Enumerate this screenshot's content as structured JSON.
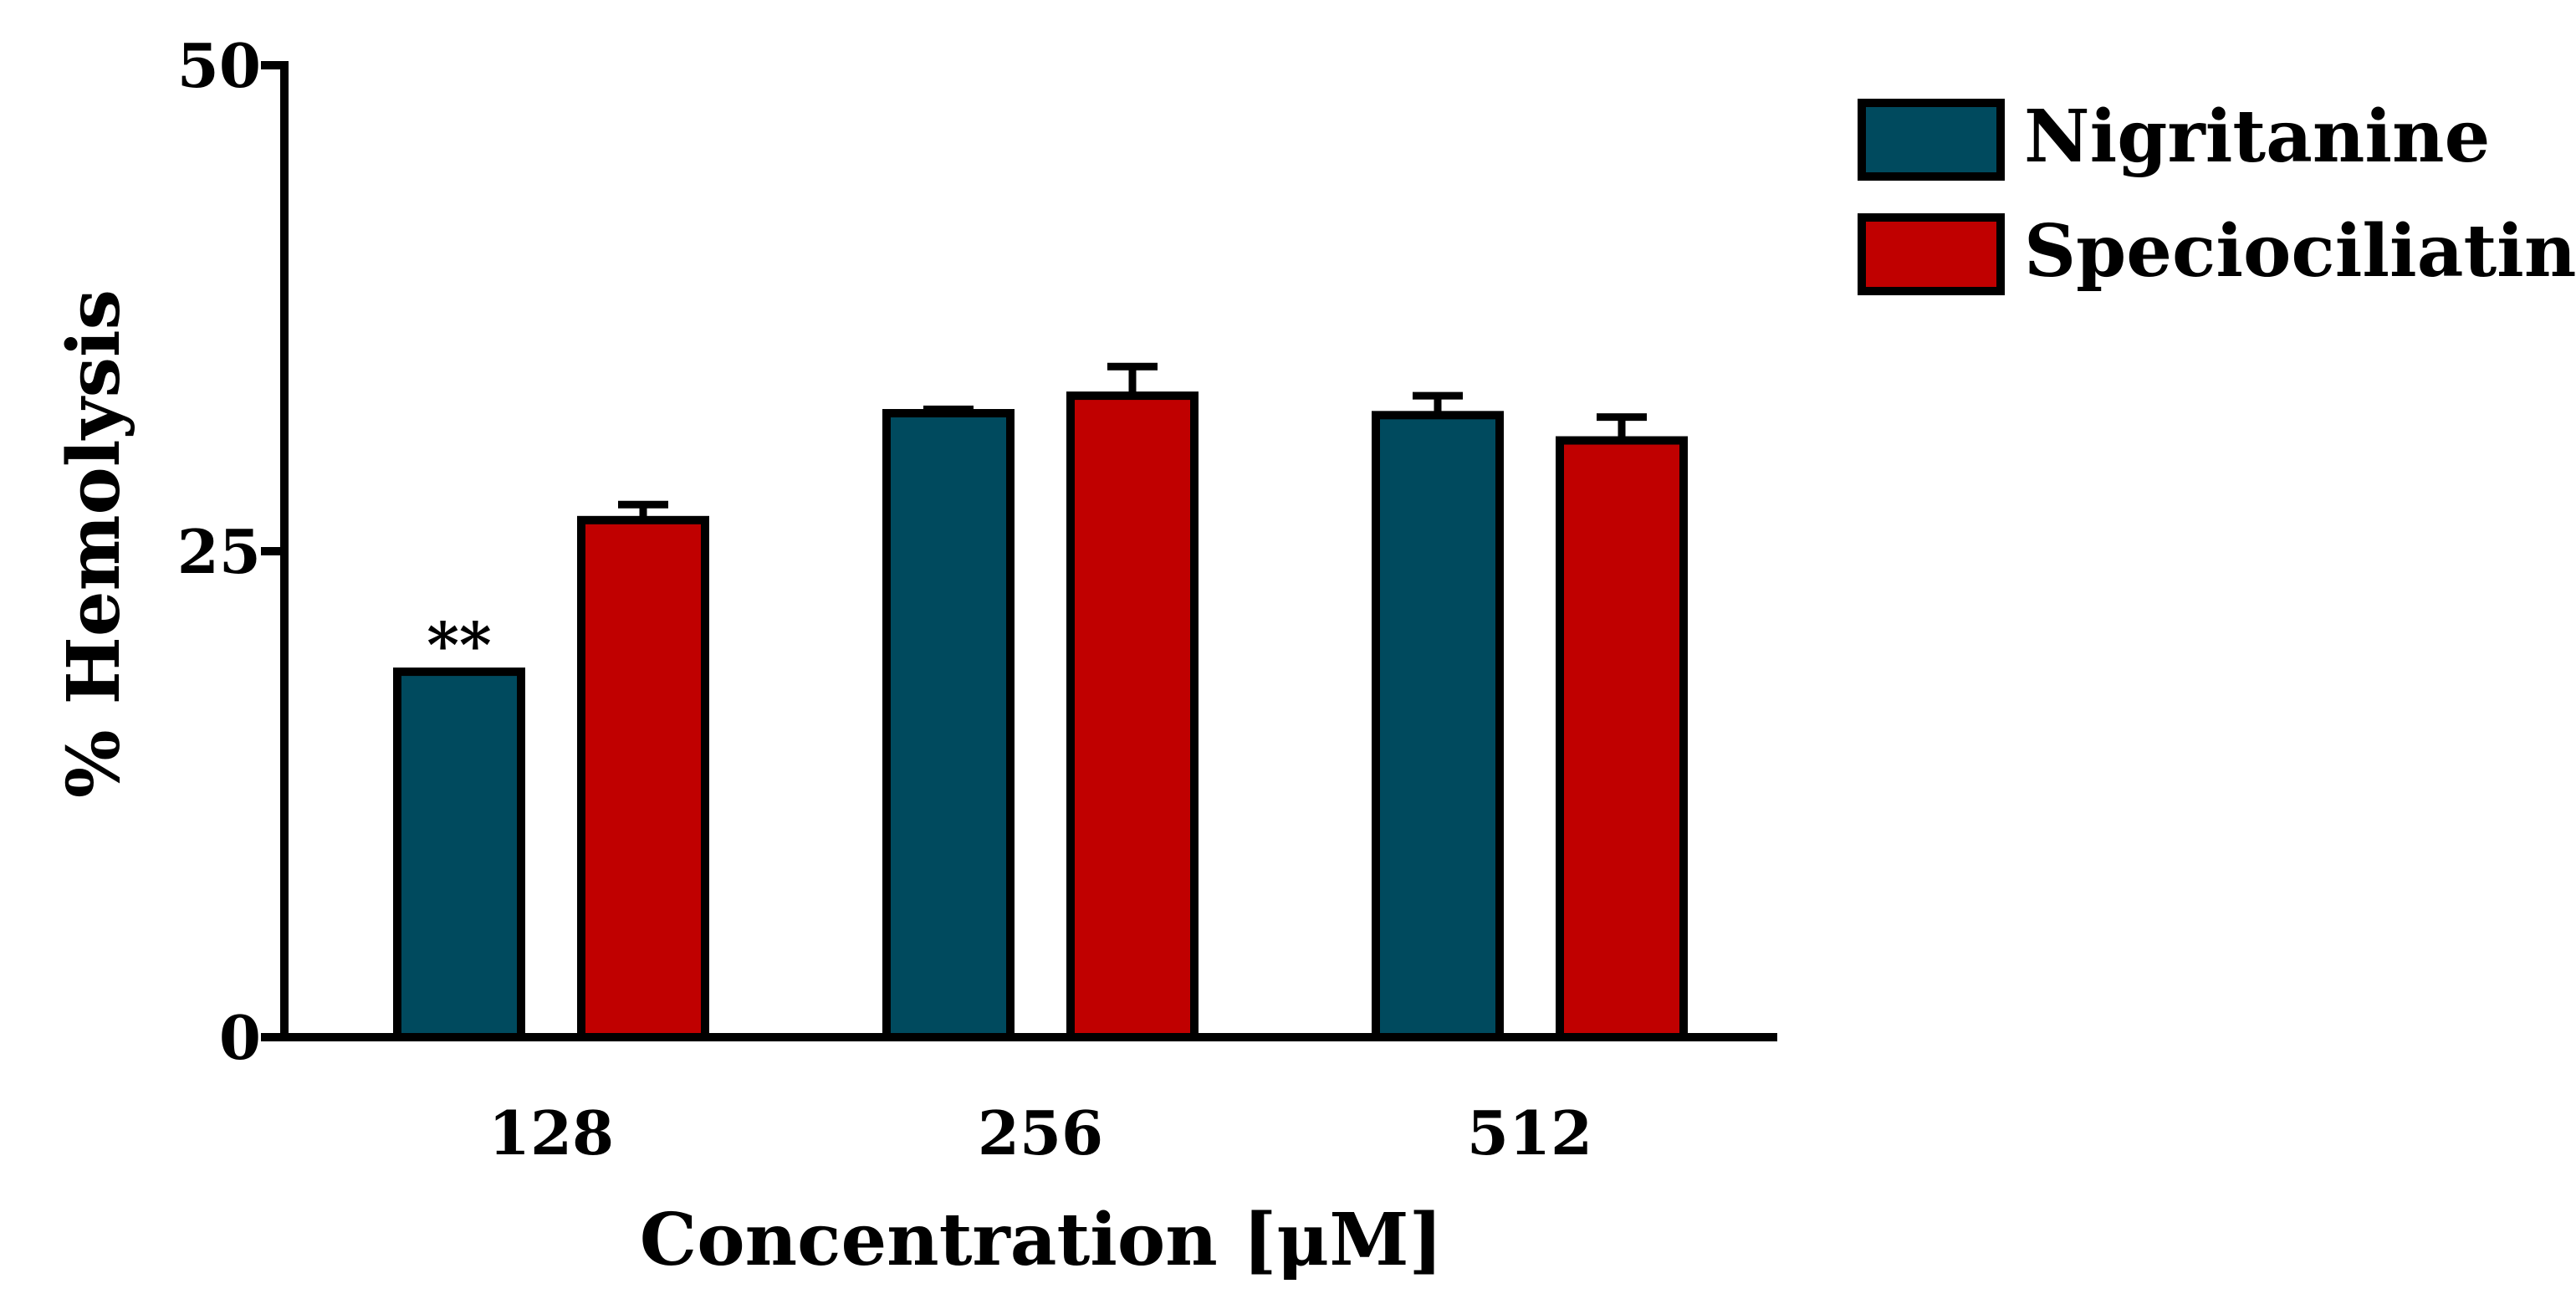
{
  "chart_data": {
    "type": "bar",
    "title": "",
    "xlabel": "Concentration [μM]",
    "ylabel": "% Hemolysis",
    "categories": [
      "128",
      "256",
      "512"
    ],
    "ylim": [
      0,
      50
    ],
    "yticks": [
      "0",
      "25",
      "50"
    ],
    "grid": false,
    "legend_position": "top-right",
    "series": [
      {
        "name": "Nigritanine",
        "color": "#004A5E",
        "values": [
          18.8,
          32.1,
          32.0
        ],
        "errors": [
          0.0,
          0.2,
          1.0
        ]
      },
      {
        "name": "Speciociliatine",
        "color": "#C00000",
        "values": [
          26.6,
          33.0,
          30.7
        ],
        "errors": [
          0.8,
          1.5,
          1.2
        ]
      }
    ],
    "annotations": [
      {
        "text": "**",
        "category": "128",
        "series": "Nigritanine"
      }
    ]
  }
}
